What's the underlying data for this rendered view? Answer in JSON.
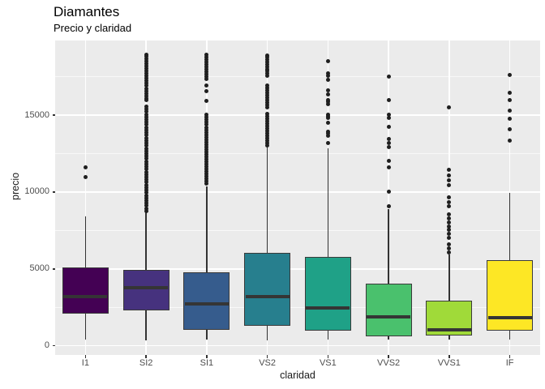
{
  "header": {
    "title": "Diamantes",
    "subtitle": "Precio y claridad"
  },
  "chart_data": {
    "type": "boxplot",
    "title": "Diamantes",
    "subtitle": "Precio y claridad",
    "xlabel": "claridad",
    "ylabel": "precio",
    "categories": [
      "I1",
      "SI2",
      "SI1",
      "VS2",
      "VS1",
      "VVS2",
      "VVS1",
      "IF"
    ],
    "y_tick_labels": [
      "0",
      "5000",
      "10000",
      "15000"
    ],
    "y_ticks": [
      0,
      5000,
      10000,
      15000
    ],
    "y_minor_ticks": [
      2500,
      7500,
      12500,
      17500
    ],
    "ylim": [
      -600,
      19850
    ],
    "legend": "none",
    "grid": "on",
    "theme": {
      "panel_bg": "#EBEBEB",
      "grid_color": "#FFFFFF",
      "tick_label_color": "#4D4D4D",
      "box_border": "#3A3A3A",
      "median_color": "#353535",
      "whisker_color": "#333333",
      "outlier_color": "#1F1F1F",
      "title_color": "#000000"
    },
    "palette": [
      "#440154",
      "#46327E",
      "#365C8D",
      "#277F8E",
      "#1FA187",
      "#4AC16D",
      "#A0DA39",
      "#FDE725"
    ],
    "series": [
      {
        "name": "I1",
        "fill": "#440154",
        "whisker_low": 420,
        "q1": 2090,
        "median": 3210,
        "q3": 5070,
        "whisker_high": 8420,
        "outliers": [
          11590,
          10950
        ]
      },
      {
        "name": "SI2",
        "fill": "#46327E",
        "whisker_low": 370,
        "q1": 2300,
        "median": 3775,
        "q3": 4930,
        "whisker_high": 8690,
        "outliers": [
          18950,
          18800,
          18650,
          18500,
          18340,
          18180,
          18020,
          17860,
          17700,
          17540,
          17380,
          17220,
          17060,
          16900,
          16740,
          16580,
          16420,
          16260,
          16100,
          15950,
          15560,
          15390,
          15220,
          15050,
          14880,
          14710,
          14540,
          14370,
          14200,
          14030,
          13860,
          13690,
          13520,
          13350,
          13180,
          13010,
          12840,
          12670,
          12500,
          12330,
          12160,
          11990,
          11820,
          11650,
          11480,
          11310,
          11140,
          10970,
          10800,
          10630,
          10460,
          10290,
          10120,
          9950,
          9780,
          9610,
          9440,
          9270,
          9100,
          8930,
          8760
        ]
      },
      {
        "name": "SI1",
        "fill": "#365C8D",
        "whisker_low": 420,
        "q1": 1040,
        "median": 2700,
        "q3": 4800,
        "whisker_high": 10370,
        "outliers": [
          18950,
          18790,
          18630,
          18470,
          18310,
          18150,
          17990,
          17830,
          17670,
          17510,
          17350,
          16950,
          16530,
          15900,
          15010,
          14850,
          14690,
          14530,
          14370,
          14210,
          14050,
          13890,
          13730,
          13570,
          13410,
          13250,
          13090,
          12930,
          12770,
          12610,
          12450,
          12290,
          12130,
          11970,
          11810,
          11650,
          11490,
          11330,
          11170,
          11010,
          10850,
          10690,
          10530
        ]
      },
      {
        "name": "VS2",
        "fill": "#277F8E",
        "whisker_low": 370,
        "q1": 1300,
        "median": 3200,
        "q3": 6030,
        "whisker_high": 12950,
        "outliers": [
          18900,
          18750,
          18600,
          18450,
          18300,
          18150,
          18000,
          17850,
          17700,
          17550,
          16940,
          16780,
          16620,
          16460,
          16300,
          16140,
          15980,
          15820,
          15660,
          15500,
          15100,
          14940,
          14780,
          14620,
          14460,
          14300,
          14140,
          13980,
          13820,
          13660,
          13500,
          13340,
          13180,
          13020
        ]
      },
      {
        "name": "VS1",
        "fill": "#1FA187",
        "whisker_low": 400,
        "q1": 985,
        "median": 2475,
        "q3": 5800,
        "whisker_high": 12820,
        "outliers": [
          18490,
          17740,
          17550,
          17300,
          16600,
          16370,
          15980,
          15850,
          15720,
          15050,
          14930,
          14810,
          14490,
          13930,
          13790,
          13650,
          13170
        ]
      },
      {
        "name": "VVS2",
        "fill": "#4AC16D",
        "whisker_low": 410,
        "q1": 630,
        "median": 1900,
        "q3": 4050,
        "whisker_high": 8910,
        "outliers": [
          17510,
          15950,
          15050,
          14840,
          14260,
          13470,
          13190,
          12910,
          12000,
          11600,
          10020,
          9090
        ]
      },
      {
        "name": "VVS1",
        "fill": "#A0DA39",
        "whisker_low": 420,
        "q1": 645,
        "median": 1050,
        "q3": 2950,
        "whisker_high": 5950,
        "outliers": [
          15510,
          11420,
          11100,
          10780,
          10460,
          9670,
          9350,
          9050,
          8530,
          8270,
          8020,
          7780,
          7560,
          7290,
          7040,
          6600,
          6330,
          6070
        ]
      },
      {
        "name": "IF",
        "fill": "#FDE725",
        "whisker_low": 420,
        "q1": 985,
        "median": 1805,
        "q3": 5590,
        "whisker_high": 9960,
        "outliers": [
          17600,
          16460,
          15980,
          15280,
          14790,
          14090,
          13350
        ]
      }
    ]
  }
}
